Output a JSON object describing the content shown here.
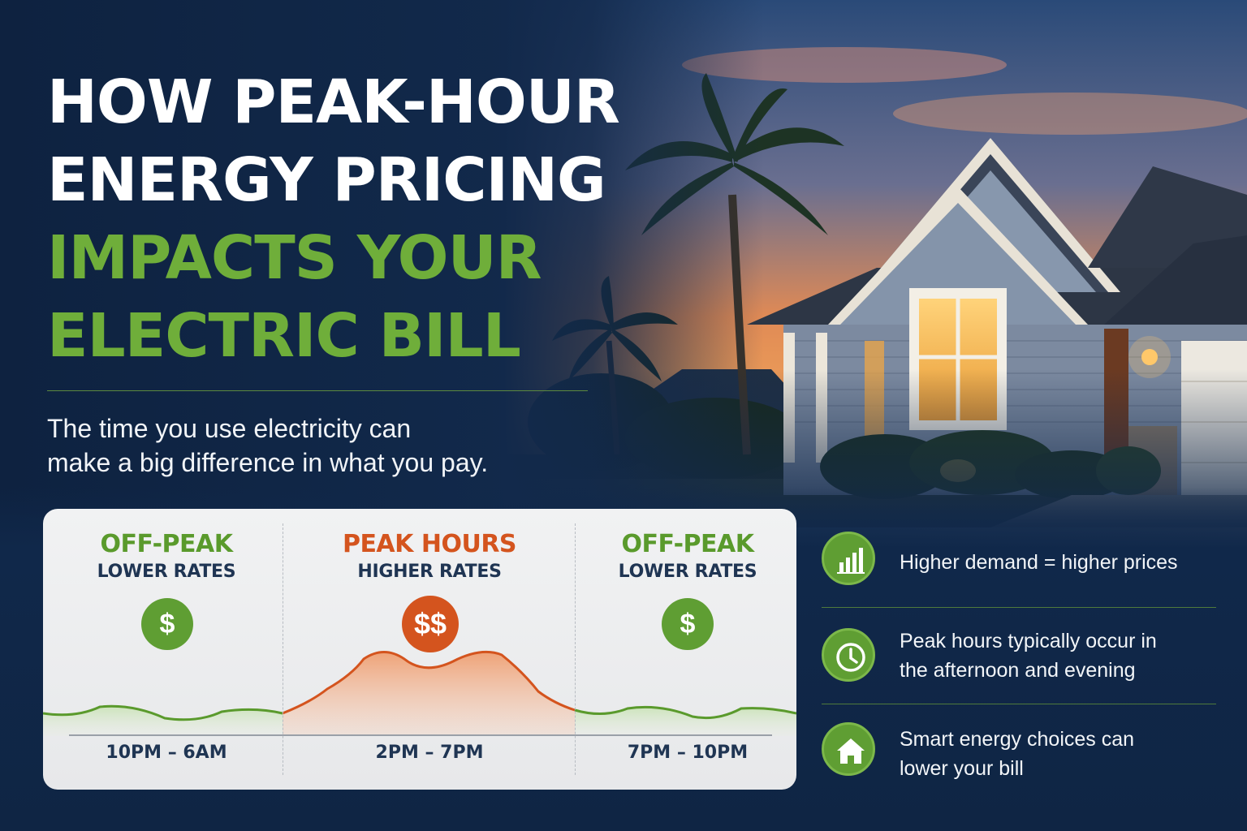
{
  "headline": {
    "line1": "HOW PEAK-HOUR",
    "line2": "ENERGY PRICING",
    "line3": "IMPACTS YOUR",
    "line4": "ELECTRIC BILL"
  },
  "subtitle": {
    "line1": "The time you use electricity can",
    "line2": "make a big difference in what you pay."
  },
  "periods": [
    {
      "heading": "OFF-PEAK",
      "rate": "LOWER RATES",
      "symbol": "$",
      "time": "10PM – 6AM"
    },
    {
      "heading": "PEAK HOURS",
      "rate": "HIGHER RATES",
      "symbol": "$$",
      "time": "2PM – 7PM"
    },
    {
      "heading": "OFF-PEAK",
      "rate": "LOWER RATES",
      "symbol": "$",
      "time": "7PM – 10PM"
    }
  ],
  "facts": [
    {
      "icon": "bar-chart-icon",
      "line1": "Higher demand = higher prices",
      "line2": ""
    },
    {
      "icon": "clock-icon",
      "line1": "Peak hours typically occur in",
      "line2": "the afternoon and evening"
    },
    {
      "icon": "house-icon",
      "line1": "Smart energy choices can",
      "line2": "lower your bill"
    }
  ],
  "colors": {
    "green": "#5f9e33",
    "green_text": "#5a9a2c",
    "orange": "#d4541e",
    "navy": "#0f2340"
  }
}
